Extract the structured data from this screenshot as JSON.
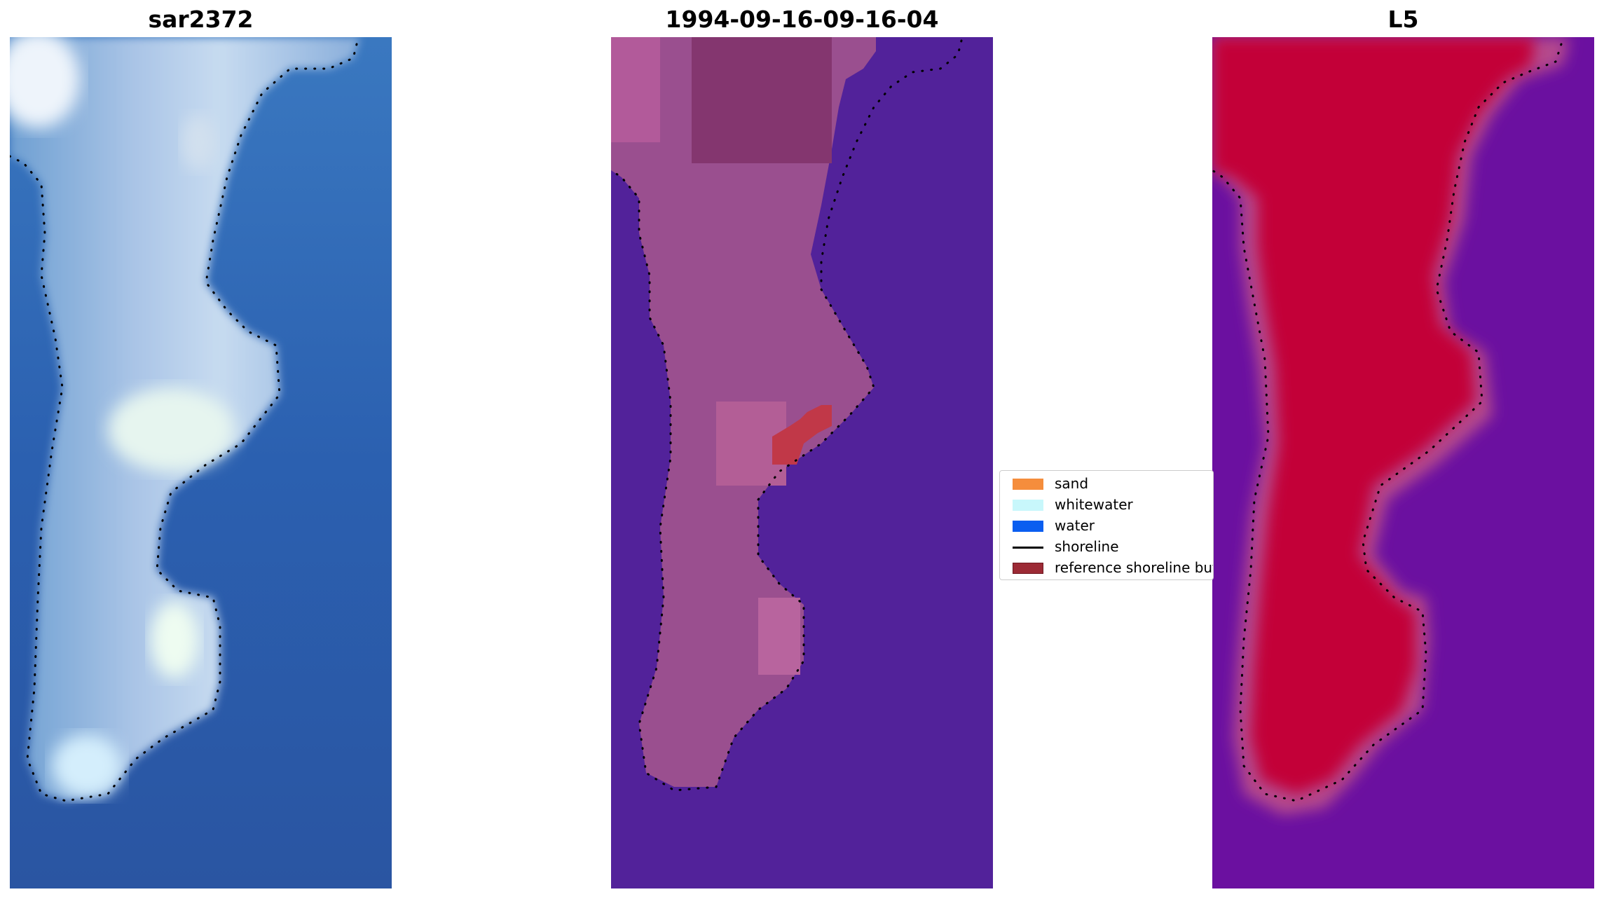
{
  "panels": [
    {
      "id": "rgb",
      "title": "sar2372"
    },
    {
      "id": "classification",
      "title": "1994-09-16-09-16-04"
    },
    {
      "id": "mndwi",
      "title": "L5"
    }
  ],
  "legend": {
    "items": [
      {
        "label": "sand",
        "color": "#f58d3c",
        "kind": "patch"
      },
      {
        "label": "whitewater",
        "color": "#c8f7fb",
        "kind": "patch"
      },
      {
        "label": "water",
        "color": "#0a5ef0",
        "kind": "patch"
      },
      {
        "label": "shoreline",
        "color": "#000000",
        "kind": "line"
      },
      {
        "label": "reference shoreline buffer",
        "color": "#9c2a35",
        "kind": "patch"
      }
    ]
  },
  "colors": {
    "water_dark": "#2c5aa6",
    "water_mid": "#3f7cc0",
    "sand_light": "#b3cdea",
    "whitewater": "#e6f7ef",
    "class_water": "#52229a",
    "class_land": "#9a4f8f",
    "class_buffer": "#c13848",
    "index_low": "#6b10a0",
    "index_high": "#c30637"
  }
}
